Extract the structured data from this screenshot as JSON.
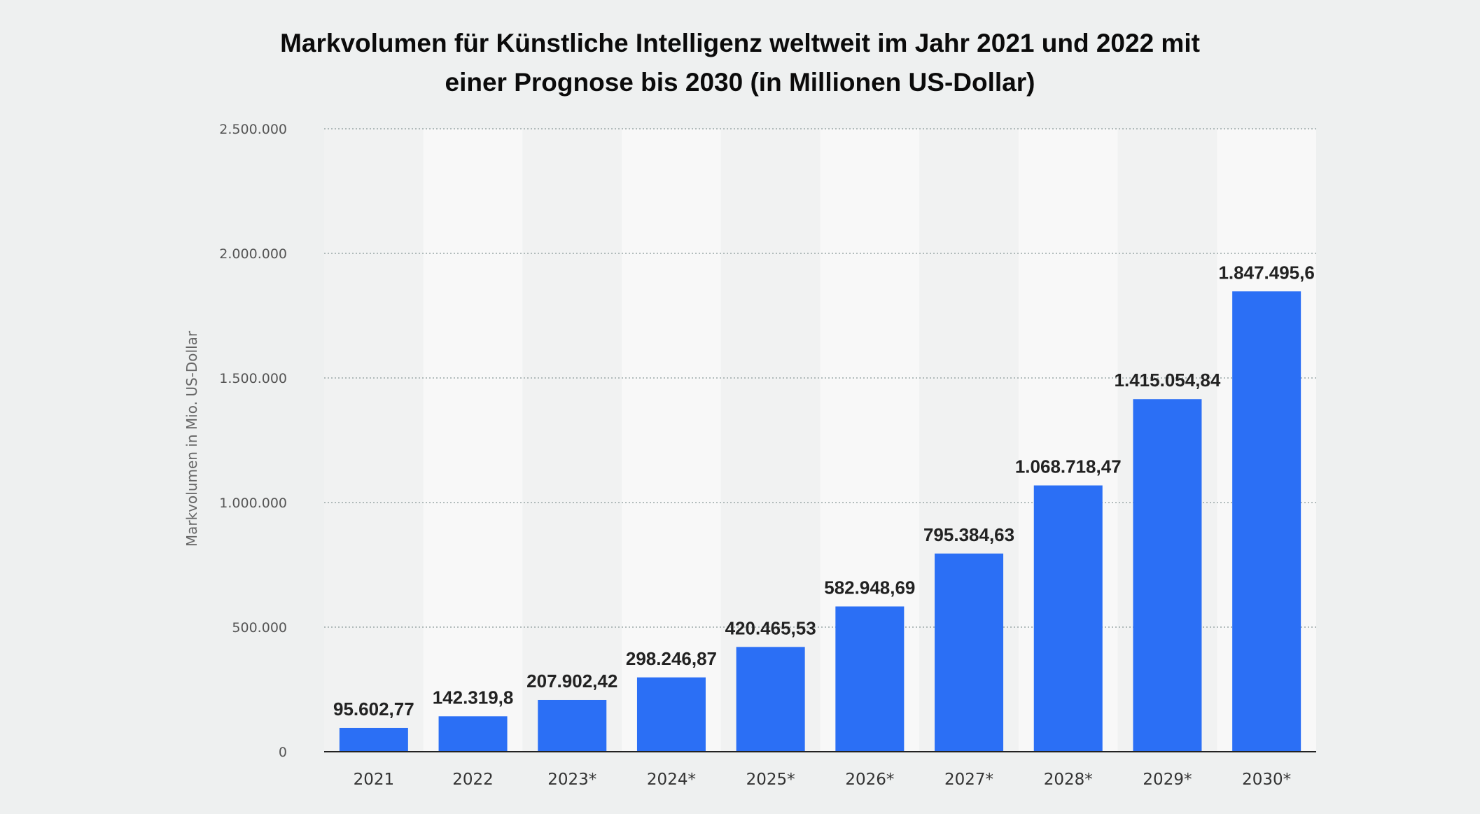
{
  "chart_data": {
    "type": "bar",
    "title_lines": [
      "Markvolumen für Künstliche Intelligenz weltweit im Jahr 2021 und 2022 mit",
      "einer Prognose bis 2030 (in Millionen US-Dollar)"
    ],
    "ylabel": "Markvolumen in Mio. US-Dollar",
    "categories": [
      "2021",
      "2022",
      "2023*",
      "2024*",
      "2025*",
      "2026*",
      "2027*",
      "2028*",
      "2029*",
      "2030*"
    ],
    "values": [
      95602.77,
      142319.8,
      207902.42,
      298246.87,
      420465.53,
      582948.69,
      795384.63,
      1068718.47,
      1415054.84,
      1847495.6
    ],
    "value_labels": [
      "95.602,77",
      "142.319,8",
      "207.902,42",
      "298.246,87",
      "420.465,53",
      "582.948,69",
      "795.384,63",
      "1.068.718,47",
      "1.415.054,84",
      "1.847.495,6"
    ],
    "ylim": [
      0,
      2500000
    ],
    "yticks": [
      {
        "value": 0,
        "label": "0"
      },
      {
        "value": 500000,
        "label": "500.000"
      },
      {
        "value": 1000000,
        "label": "1.000.000"
      },
      {
        "value": 1500000,
        "label": "1.500.000"
      },
      {
        "value": 2000000,
        "label": "2.000.000"
      },
      {
        "value": 2500000,
        "label": "2.500.000"
      }
    ],
    "grid": true,
    "colors": {
      "bar": "#2b6ff5",
      "background": "#eef0f0",
      "plot_band_light": "#f8f8f8",
      "plot_band_dark": "#f1f2f2",
      "gridline": "#9aa8a8",
      "axis": "#222222"
    }
  }
}
